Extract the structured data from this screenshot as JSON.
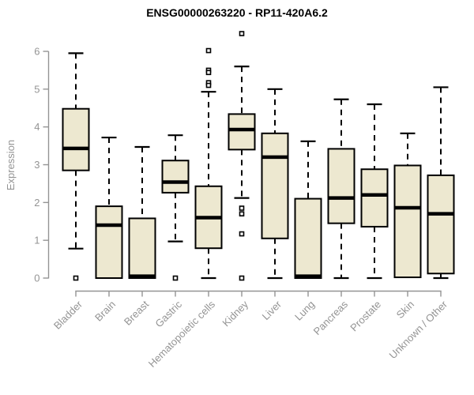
{
  "chart_data": {
    "type": "boxplot",
    "title": "ENSG00000263220 - RP11-420A6.2",
    "ylabel": "Expression",
    "xlabel": "",
    "ylim": [
      0,
      6.5
    ],
    "yticks": [
      0,
      1,
      2,
      3,
      4,
      5,
      6
    ],
    "grid": false,
    "legend": "none",
    "categories": [
      "Bladder",
      "Brain",
      "Breast",
      "Gastric",
      "Hematopoietic cells",
      "Kidney",
      "Liver",
      "Lung",
      "Pancreas",
      "Prostate",
      "Skin",
      "Unknown / Other"
    ],
    "series": [
      {
        "label": "Bladder",
        "whisker_low": 0.78,
        "q1": 2.85,
        "median": 3.43,
        "q3": 4.48,
        "whisker_high": 5.95,
        "outliers": [
          0.0
        ]
      },
      {
        "label": "Brain",
        "whisker_low": 0.0,
        "q1": 0.0,
        "median": 1.4,
        "q3": 1.9,
        "whisker_high": 3.72,
        "outliers": []
      },
      {
        "label": "Breast",
        "whisker_low": 0.0,
        "q1": 0.0,
        "median": 0.05,
        "q3": 1.58,
        "whisker_high": 3.47,
        "outliers": []
      },
      {
        "label": "Gastric",
        "whisker_low": 0.97,
        "q1": 2.26,
        "median": 2.54,
        "q3": 3.11,
        "whisker_high": 3.78,
        "outliers": [
          0.0
        ]
      },
      {
        "label": "Hematopoietic cells",
        "whisker_low": 0.0,
        "q1": 0.79,
        "median": 1.6,
        "q3": 2.43,
        "whisker_high": 4.93,
        "outliers": [
          6.02,
          5.5,
          5.44,
          5.17,
          5.1
        ]
      },
      {
        "label": "Kidney",
        "whisker_low": 2.12,
        "q1": 3.4,
        "median": 3.93,
        "q3": 4.34,
        "whisker_high": 5.6,
        "outliers": [
          6.47,
          1.85,
          1.7,
          1.17,
          0.0
        ]
      },
      {
        "label": "Liver",
        "whisker_low": 0.0,
        "q1": 1.05,
        "median": 3.2,
        "q3": 3.83,
        "whisker_high": 5.0,
        "outliers": []
      },
      {
        "label": "Lung",
        "whisker_low": 0.0,
        "q1": 0.0,
        "median": 0.05,
        "q3": 2.1,
        "whisker_high": 3.62,
        "outliers": []
      },
      {
        "label": "Pancreas",
        "whisker_low": 0.0,
        "q1": 1.45,
        "median": 2.12,
        "q3": 3.42,
        "whisker_high": 4.73,
        "outliers": []
      },
      {
        "label": "Prostate",
        "whisker_low": 0.0,
        "q1": 1.36,
        "median": 2.2,
        "q3": 2.88,
        "whisker_high": 4.6,
        "outliers": []
      },
      {
        "label": "Skin",
        "whisker_low": 0.0,
        "q1": 0.02,
        "median": 1.86,
        "q3": 2.98,
        "whisker_high": 3.83,
        "outliers": []
      },
      {
        "label": "Unknown / Other",
        "whisker_low": 0.0,
        "q1": 0.12,
        "median": 1.7,
        "q3": 2.72,
        "whisker_high": 5.05,
        "outliers": []
      }
    ],
    "colors": {
      "box_fill": "#EDE8D0",
      "box_stroke": "#000000",
      "median": "#000000",
      "axis": "#949494",
      "title": "#000000",
      "background": "#FFFFFF"
    }
  }
}
